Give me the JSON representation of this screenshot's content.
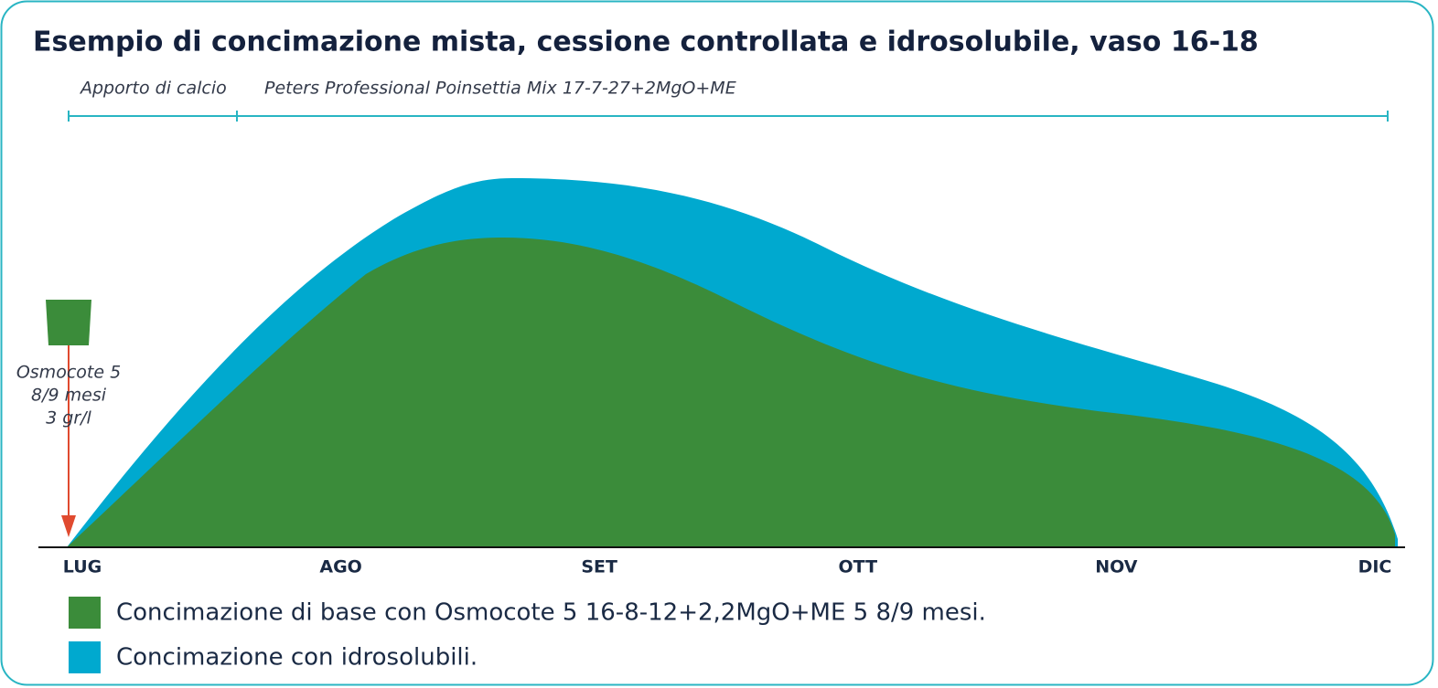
{
  "chart_data": {
    "type": "area",
    "title": "Esempio di concimazione mista, cessione controllata e idrosolubile, vaso 16-18",
    "annotations": [
      "Apporto di calcio",
      "Peters Professional Poinsettia Mix 17-7-27+2MgO+ME"
    ],
    "marker_label": [
      "Osmocote 5",
      "8/9 mesi",
      "3 gr/l"
    ],
    "categories": [
      "LUG",
      "AGO",
      "SET",
      "OTT",
      "NOV",
      "DIC"
    ],
    "series": [
      {
        "name": "Concimazione di base con Osmocote 5 16-8-12+2,2MgO+ME 5 8/9 mesi.",
        "color": "#3b8c3a"
      },
      {
        "name": "Concimazione con idrosolubili.",
        "color": "#00a9cf"
      }
    ]
  }
}
